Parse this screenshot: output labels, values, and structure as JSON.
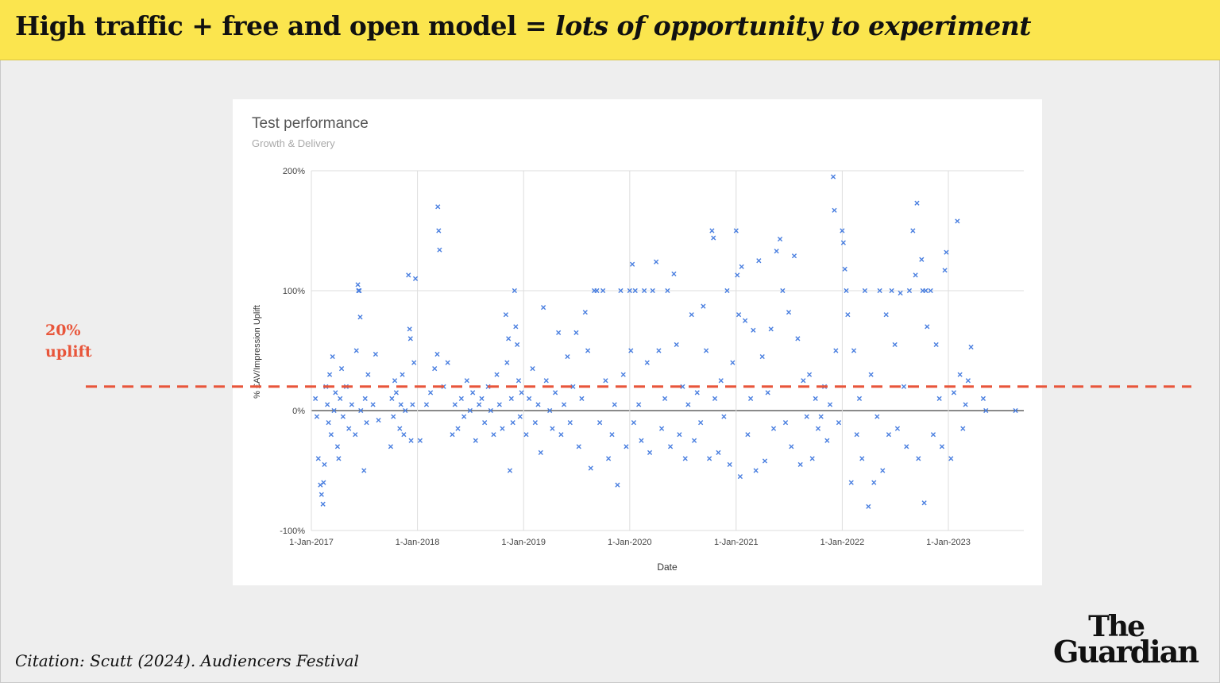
{
  "header": {
    "title_plain": "High traffic + free and open model = ",
    "title_emphasis": "lots of opportunity to experiment",
    "background": "#fbe54e"
  },
  "annotation": {
    "label_line1": "20%",
    "label_line2": "uplift",
    "value": 20,
    "color": "#e8553a"
  },
  "citation": "Citation: Scutt (2024). Audiencers Festival",
  "logo": {
    "line1": "The",
    "line2": "Guardian"
  },
  "chart_data": {
    "type": "scatter",
    "title": "Test performance",
    "subtitle": "Growth & Delivery",
    "xlabel": "Date",
    "ylabel": "% £AV/Impression Uplift",
    "x_ticks": [
      "1-Jan-2017",
      "1-Jan-2018",
      "1-Jan-2019",
      "1-Jan-2020",
      "1-Jan-2021",
      "1-Jan-2022",
      "1-Jan-2023"
    ],
    "y_ticks": [
      "200%",
      "100%",
      "0%",
      "-100%"
    ],
    "xlim": [
      "2017-01-01",
      "2023-09-01"
    ],
    "ylim": [
      -100,
      200
    ],
    "grid": true,
    "point_color": "#4a7fe0",
    "reference_line": 0,
    "series": [
      {
        "points": [
          [
            "2017-01-15",
            10
          ],
          [
            "2017-01-20",
            -5
          ],
          [
            "2017-01-25",
            -40
          ],
          [
            "2017-02-01",
            -62
          ],
          [
            "2017-02-05",
            -70
          ],
          [
            "2017-02-10",
            -78
          ],
          [
            "2017-02-12",
            -60
          ],
          [
            "2017-02-15",
            -45
          ],
          [
            "2017-02-20",
            20
          ],
          [
            "2017-02-25",
            5
          ],
          [
            "2017-03-01",
            -10
          ],
          [
            "2017-03-05",
            30
          ],
          [
            "2017-03-10",
            -20
          ],
          [
            "2017-03-15",
            45
          ],
          [
            "2017-03-20",
            0
          ],
          [
            "2017-03-25",
            15
          ],
          [
            "2017-04-01",
            -30
          ],
          [
            "2017-04-05",
            -40
          ],
          [
            "2017-04-10",
            10
          ],
          [
            "2017-04-15",
            35
          ],
          [
            "2017-04-20",
            -5
          ],
          [
            "2017-05-01",
            20
          ],
          [
            "2017-05-10",
            -15
          ],
          [
            "2017-05-20",
            5
          ],
          [
            "2017-06-01",
            -20
          ],
          [
            "2017-06-05",
            50
          ],
          [
            "2017-06-10",
            105
          ],
          [
            "2017-06-12",
            100
          ],
          [
            "2017-06-15",
            100
          ],
          [
            "2017-06-18",
            78
          ],
          [
            "2017-06-20",
            0
          ],
          [
            "2017-07-01",
            -50
          ],
          [
            "2017-07-05",
            10
          ],
          [
            "2017-07-10",
            -10
          ],
          [
            "2017-07-15",
            30
          ],
          [
            "2017-08-01",
            5
          ],
          [
            "2017-08-10",
            47
          ],
          [
            "2017-08-20",
            -8
          ],
          [
            "2017-10-01",
            -30
          ],
          [
            "2017-10-05",
            10
          ],
          [
            "2017-10-10",
            -5
          ],
          [
            "2017-10-15",
            25
          ],
          [
            "2017-10-20",
            15
          ],
          [
            "2017-11-01",
            -15
          ],
          [
            "2017-11-05",
            5
          ],
          [
            "2017-11-10",
            30
          ],
          [
            "2017-11-15",
            -20
          ],
          [
            "2017-11-20",
            0
          ],
          [
            "2017-12-01",
            113
          ],
          [
            "2017-12-05",
            68
          ],
          [
            "2017-12-08",
            60
          ],
          [
            "2017-12-10",
            -25
          ],
          [
            "2017-12-15",
            5
          ],
          [
            "2017-12-20",
            40
          ],
          [
            "2017-12-25",
            110
          ],
          [
            "2018-01-10",
            -25
          ],
          [
            "2018-02-01",
            5
          ],
          [
            "2018-02-15",
            15
          ],
          [
            "2018-03-01",
            35
          ],
          [
            "2018-03-10",
            47
          ],
          [
            "2018-03-12",
            170
          ],
          [
            "2018-03-15",
            150
          ],
          [
            "2018-03-18",
            134
          ],
          [
            "2018-04-01",
            20
          ],
          [
            "2018-04-15",
            40
          ],
          [
            "2018-05-01",
            -20
          ],
          [
            "2018-05-10",
            5
          ],
          [
            "2018-05-20",
            -15
          ],
          [
            "2018-06-01",
            10
          ],
          [
            "2018-06-10",
            -5
          ],
          [
            "2018-06-20",
            25
          ],
          [
            "2018-07-01",
            0
          ],
          [
            "2018-07-10",
            15
          ],
          [
            "2018-07-20",
            -25
          ],
          [
            "2018-08-01",
            5
          ],
          [
            "2018-08-10",
            10
          ],
          [
            "2018-08-20",
            -10
          ],
          [
            "2018-09-01",
            20
          ],
          [
            "2018-09-10",
            0
          ],
          [
            "2018-09-20",
            -20
          ],
          [
            "2018-10-01",
            30
          ],
          [
            "2018-10-10",
            5
          ],
          [
            "2018-10-20",
            -15
          ],
          [
            "2018-11-01",
            80
          ],
          [
            "2018-11-05",
            40
          ],
          [
            "2018-11-10",
            60
          ],
          [
            "2018-11-15",
            -50
          ],
          [
            "2018-11-20",
            10
          ],
          [
            "2018-11-25",
            -10
          ],
          [
            "2018-12-01",
            100
          ],
          [
            "2018-12-05",
            70
          ],
          [
            "2018-12-10",
            55
          ],
          [
            "2018-12-15",
            25
          ],
          [
            "2018-12-20",
            -5
          ],
          [
            "2018-12-25",
            15
          ],
          [
            "2019-01-10",
            -20
          ],
          [
            "2019-01-20",
            10
          ],
          [
            "2019-02-01",
            35
          ],
          [
            "2019-02-10",
            -10
          ],
          [
            "2019-02-20",
            5
          ],
          [
            "2019-03-01",
            -35
          ],
          [
            "2019-03-10",
            86
          ],
          [
            "2019-03-20",
            25
          ],
          [
            "2019-04-01",
            0
          ],
          [
            "2019-04-10",
            -15
          ],
          [
            "2019-04-20",
            15
          ],
          [
            "2019-05-01",
            65
          ],
          [
            "2019-05-10",
            -20
          ],
          [
            "2019-05-20",
            5
          ],
          [
            "2019-06-01",
            45
          ],
          [
            "2019-06-10",
            -10
          ],
          [
            "2019-06-20",
            20
          ],
          [
            "2019-07-01",
            65
          ],
          [
            "2019-07-10",
            -30
          ],
          [
            "2019-07-20",
            10
          ],
          [
            "2019-08-01",
            82
          ],
          [
            "2019-08-10",
            50
          ],
          [
            "2019-08-20",
            -48
          ],
          [
            "2019-09-01",
            100
          ],
          [
            "2019-09-10",
            100
          ],
          [
            "2019-09-20",
            -10
          ],
          [
            "2019-10-01",
            100
          ],
          [
            "2019-10-10",
            25
          ],
          [
            "2019-10-20",
            -40
          ],
          [
            "2019-11-01",
            -20
          ],
          [
            "2019-11-10",
            5
          ],
          [
            "2019-11-20",
            -62
          ],
          [
            "2019-12-01",
            100
          ],
          [
            "2019-12-10",
            30
          ],
          [
            "2019-12-20",
            -30
          ],
          [
            "2020-01-01",
            100
          ],
          [
            "2020-01-05",
            50
          ],
          [
            "2020-01-10",
            122
          ],
          [
            "2020-01-15",
            -10
          ],
          [
            "2020-01-20",
            100
          ],
          [
            "2020-02-01",
            5
          ],
          [
            "2020-02-10",
            -25
          ],
          [
            "2020-02-20",
            100
          ],
          [
            "2020-03-01",
            40
          ],
          [
            "2020-03-10",
            -35
          ],
          [
            "2020-03-20",
            100
          ],
          [
            "2020-04-01",
            124
          ],
          [
            "2020-04-10",
            50
          ],
          [
            "2020-04-20",
            -15
          ],
          [
            "2020-05-01",
            10
          ],
          [
            "2020-05-10",
            100
          ],
          [
            "2020-05-20",
            -30
          ],
          [
            "2020-06-01",
            114
          ],
          [
            "2020-06-10",
            55
          ],
          [
            "2020-06-20",
            -20
          ],
          [
            "2020-07-01",
            20
          ],
          [
            "2020-07-10",
            -40
          ],
          [
            "2020-07-20",
            5
          ],
          [
            "2020-08-01",
            80
          ],
          [
            "2020-08-10",
            -25
          ],
          [
            "2020-08-20",
            15
          ],
          [
            "2020-09-01",
            -10
          ],
          [
            "2020-09-10",
            87
          ],
          [
            "2020-09-20",
            50
          ],
          [
            "2020-10-01",
            -40
          ],
          [
            "2020-10-10",
            150
          ],
          [
            "2020-10-15",
            144
          ],
          [
            "2020-10-20",
            10
          ],
          [
            "2020-11-01",
            -35
          ],
          [
            "2020-11-10",
            25
          ],
          [
            "2020-11-20",
            -5
          ],
          [
            "2020-12-01",
            100
          ],
          [
            "2020-12-10",
            -45
          ],
          [
            "2020-12-20",
            40
          ],
          [
            "2021-01-01",
            150
          ],
          [
            "2021-01-05",
            113
          ],
          [
            "2021-01-10",
            80
          ],
          [
            "2021-01-15",
            -55
          ],
          [
            "2021-01-20",
            120
          ],
          [
            "2021-02-01",
            75
          ],
          [
            "2021-02-10",
            -20
          ],
          [
            "2021-02-20",
            10
          ],
          [
            "2021-03-01",
            67
          ],
          [
            "2021-03-10",
            -50
          ],
          [
            "2021-03-20",
            125
          ],
          [
            "2021-04-01",
            45
          ],
          [
            "2021-04-10",
            -42
          ],
          [
            "2021-04-20",
            15
          ],
          [
            "2021-05-01",
            68
          ],
          [
            "2021-05-10",
            -15
          ],
          [
            "2021-05-20",
            133
          ],
          [
            "2021-06-01",
            143
          ],
          [
            "2021-06-10",
            100
          ],
          [
            "2021-06-20",
            -10
          ],
          [
            "2021-07-01",
            82
          ],
          [
            "2021-07-10",
            -30
          ],
          [
            "2021-07-20",
            129
          ],
          [
            "2021-08-01",
            60
          ],
          [
            "2021-08-10",
            -45
          ],
          [
            "2021-08-20",
            25
          ],
          [
            "2021-09-01",
            -5
          ],
          [
            "2021-09-10",
            30
          ],
          [
            "2021-09-20",
            -40
          ],
          [
            "2021-10-01",
            10
          ],
          [
            "2021-10-10",
            -15
          ],
          [
            "2021-10-20",
            -5
          ],
          [
            "2021-11-01",
            20
          ],
          [
            "2021-11-10",
            -25
          ],
          [
            "2021-11-20",
            5
          ],
          [
            "2021-12-01",
            195
          ],
          [
            "2021-12-05",
            167
          ],
          [
            "2021-12-10",
            50
          ],
          [
            "2021-12-20",
            -10
          ],
          [
            "2022-01-01",
            150
          ],
          [
            "2022-01-05",
            140
          ],
          [
            "2022-01-10",
            118
          ],
          [
            "2022-01-15",
            100
          ],
          [
            "2022-01-20",
            80
          ],
          [
            "2022-02-01",
            -60
          ],
          [
            "2022-02-10",
            50
          ],
          [
            "2022-02-20",
            -20
          ],
          [
            "2022-03-01",
            10
          ],
          [
            "2022-03-10",
            -40
          ],
          [
            "2022-03-20",
            100
          ],
          [
            "2022-04-01",
            -80
          ],
          [
            "2022-04-10",
            30
          ],
          [
            "2022-04-20",
            -60
          ],
          [
            "2022-05-01",
            -5
          ],
          [
            "2022-05-10",
            100
          ],
          [
            "2022-05-20",
            -50
          ],
          [
            "2022-06-01",
            80
          ],
          [
            "2022-06-10",
            -20
          ],
          [
            "2022-06-20",
            100
          ],
          [
            "2022-07-01",
            55
          ],
          [
            "2022-07-10",
            -15
          ],
          [
            "2022-07-20",
            98
          ],
          [
            "2022-08-01",
            20
          ],
          [
            "2022-08-10",
            -30
          ],
          [
            "2022-08-20",
            100
          ],
          [
            "2022-09-01",
            150
          ],
          [
            "2022-09-10",
            113
          ],
          [
            "2022-09-15",
            173
          ],
          [
            "2022-09-20",
            -40
          ],
          [
            "2022-10-01",
            126
          ],
          [
            "2022-10-05",
            100
          ],
          [
            "2022-10-10",
            -77
          ],
          [
            "2022-10-15",
            100
          ],
          [
            "2022-10-20",
            70
          ],
          [
            "2022-11-01",
            100
          ],
          [
            "2022-11-10",
            -20
          ],
          [
            "2022-11-20",
            55
          ],
          [
            "2022-12-01",
            10
          ],
          [
            "2022-12-10",
            -30
          ],
          [
            "2022-12-20",
            117
          ],
          [
            "2022-12-25",
            132
          ],
          [
            "2023-01-10",
            -40
          ],
          [
            "2023-01-20",
            15
          ],
          [
            "2023-02-01",
            158
          ],
          [
            "2023-02-10",
            30
          ],
          [
            "2023-02-20",
            -15
          ],
          [
            "2023-03-01",
            5
          ],
          [
            "2023-03-10",
            25
          ],
          [
            "2023-03-20",
            53
          ],
          [
            "2023-05-01",
            10
          ],
          [
            "2023-05-10",
            0
          ],
          [
            "2023-08-20",
            0
          ]
        ]
      }
    ]
  }
}
